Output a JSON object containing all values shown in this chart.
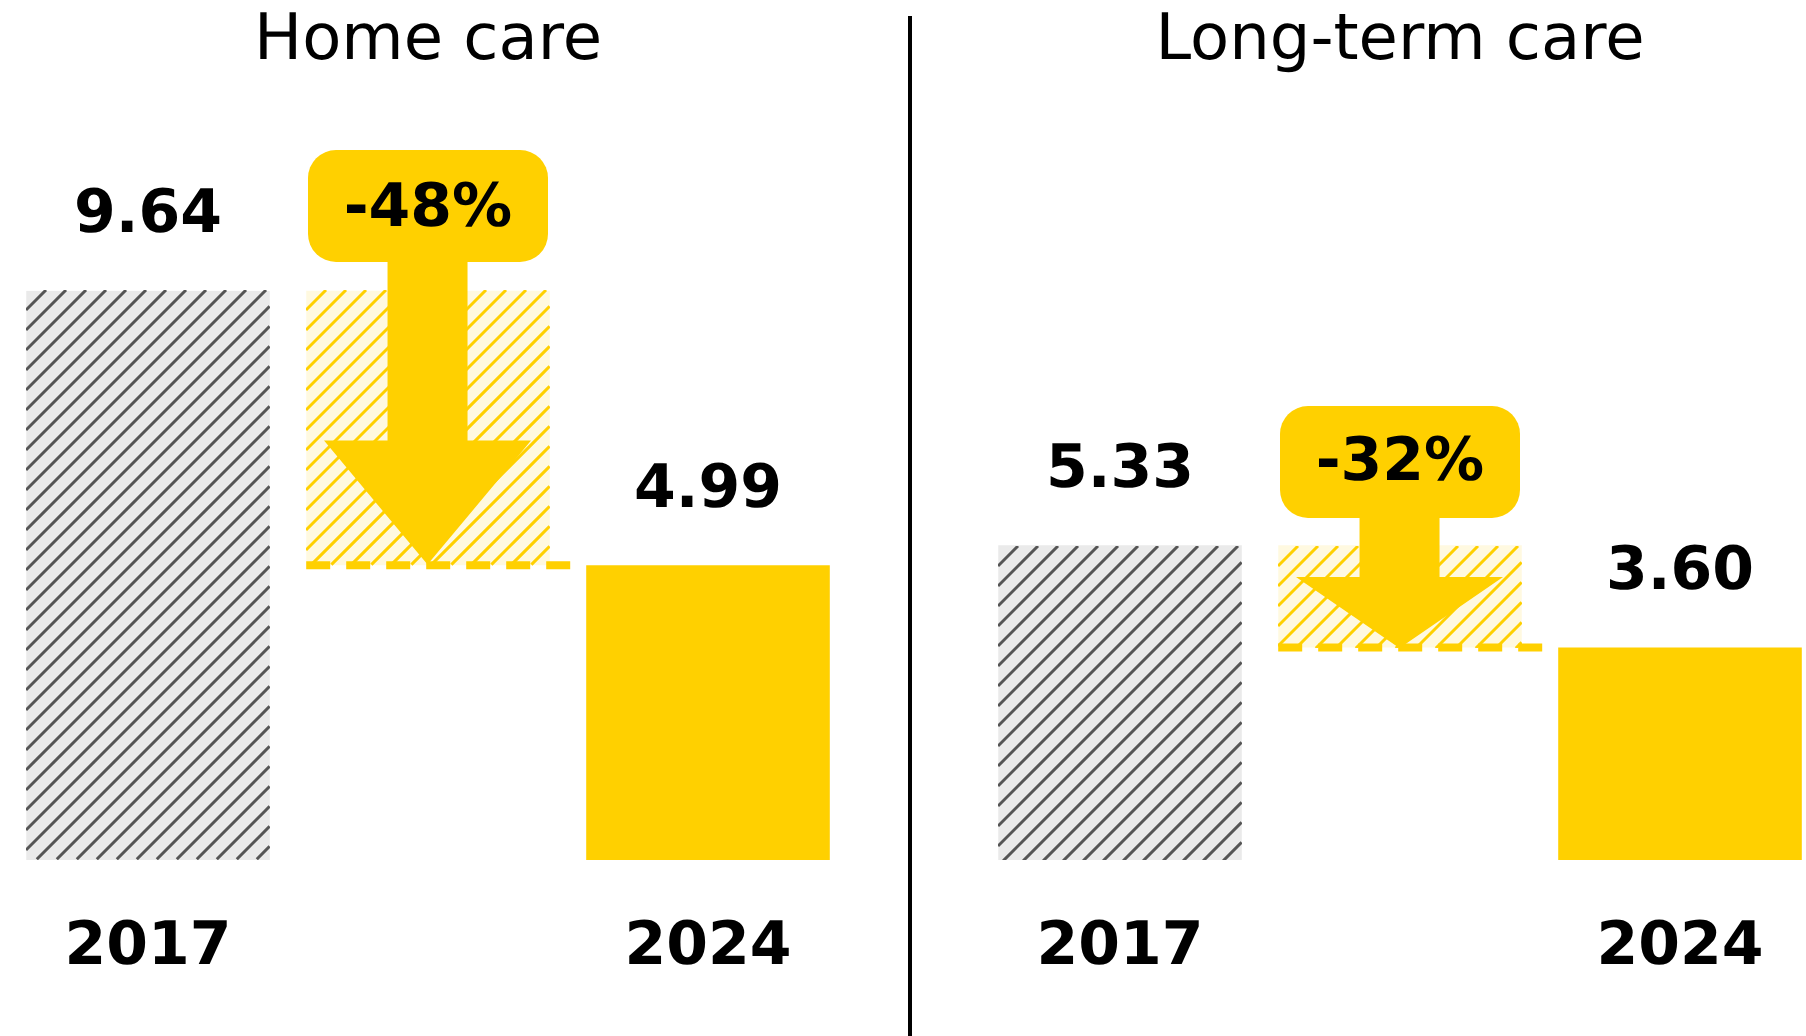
{
  "chart_data": [
    {
      "type": "bar",
      "title": "Home care",
      "categories": [
        "2017",
        null,
        "2024"
      ],
      "values": [
        9.64,
        null,
        4.99
      ],
      "colors": [
        "#555555",
        "#ffd000",
        "#ffd000"
      ],
      "value_labels": [
        "9.64",
        null,
        "4.99"
      ],
      "tick_labels": "x",
      "grid": false,
      "legend": false,
      "bands": [
        {
          "axis": "y",
          "from": 4.99,
          "to": 9.64,
          "color": "#ffd000"
        }
      ],
      "ref_lines": [
        {
          "axis": "y",
          "value": 4.99,
          "color": "#ffd000",
          "line_style": "dashed"
        }
      ],
      "annotations": [
        "-48%"
      ]
    },
    {
      "type": "bar",
      "title": "Long-term care",
      "categories": [
        "2017",
        null,
        "2024"
      ],
      "values": [
        5.33,
        null,
        3.6
      ],
      "colors": [
        "#555555",
        "#ffd000",
        "#ffd000"
      ],
      "value_labels": [
        "5.33",
        null,
        "3.60"
      ],
      "tick_labels": "x",
      "grid": false,
      "legend": false,
      "bands": [
        {
          "axis": "y",
          "from": 3.6,
          "to": 5.33,
          "color": "#ffd000"
        }
      ],
      "ref_lines": [
        {
          "axis": "y",
          "value": 3.6,
          "color": "#ffd000",
          "line_style": "dashed"
        }
      ],
      "annotations": [
        "-32%"
      ]
    }
  ]
}
